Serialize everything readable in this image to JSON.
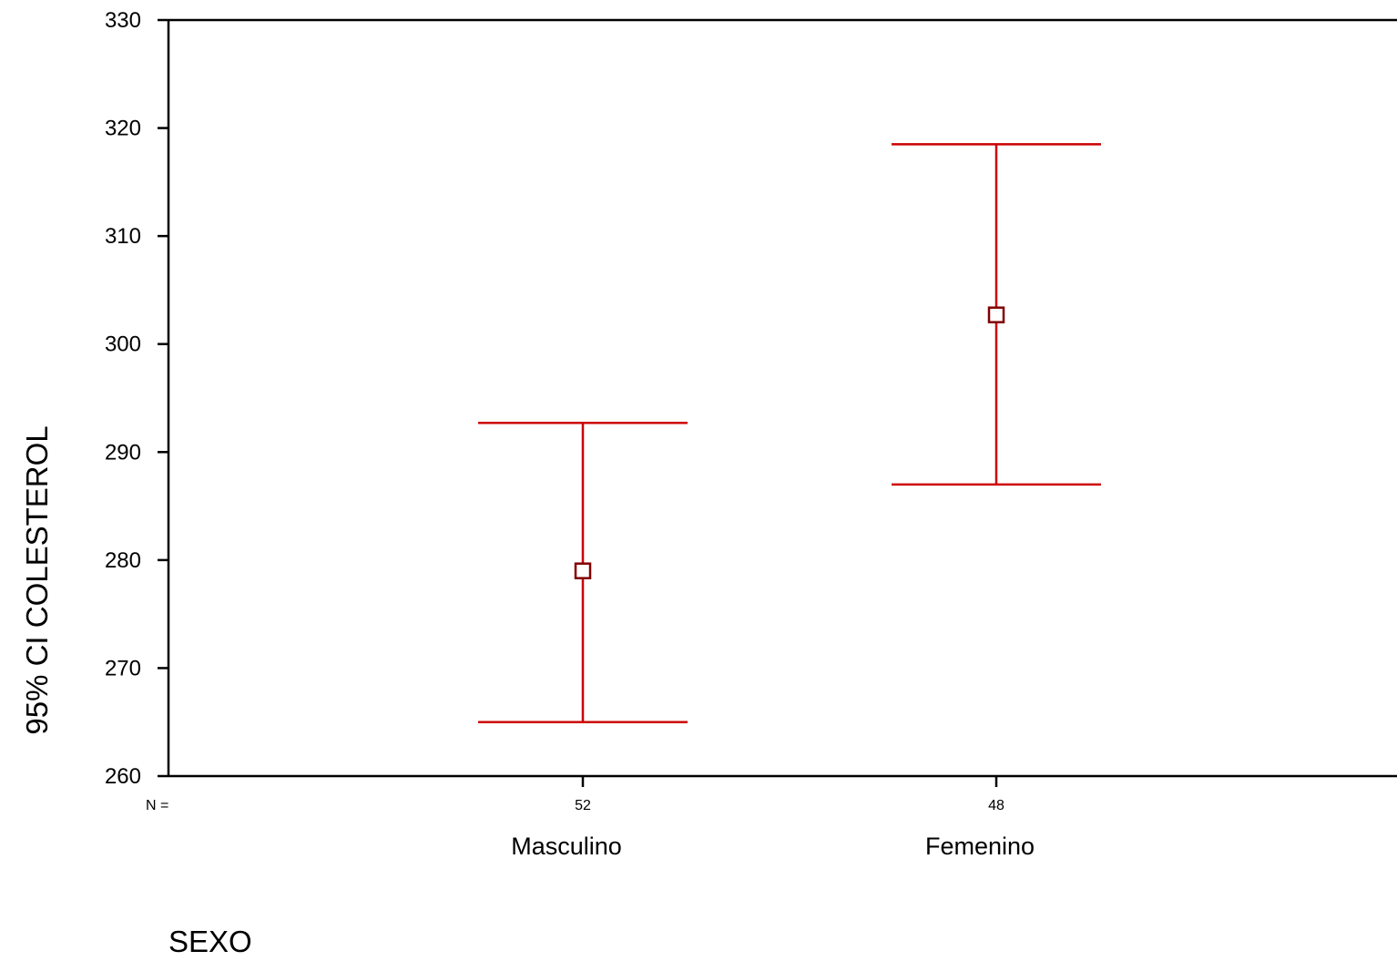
{
  "chart_data": {
    "type": "errorbar",
    "xlabel": "SEXO",
    "ylabel": "95% CI COLESTEROL",
    "ylim": [
      260,
      330
    ],
    "yticks": [
      260,
      270,
      280,
      290,
      300,
      310,
      320,
      330
    ],
    "n_prefix": "N =",
    "grid": false,
    "legend": "none",
    "colors": {
      "error_bar": "#cc0000",
      "mean_marker": "#800000",
      "axis": "#000000"
    },
    "categories": [
      "Masculino",
      "Femenino"
    ],
    "n": [
      "52",
      "48"
    ],
    "mean": [
      279,
      302.7
    ],
    "lower": [
      265,
      287
    ],
    "upper": [
      292.7,
      318.5
    ]
  }
}
